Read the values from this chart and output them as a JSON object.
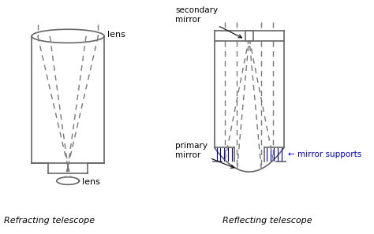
{
  "bg_color": "#ffffff",
  "line_color": "#666666",
  "dashed_color": "#777777",
  "blue_color": "#0000cc",
  "title1": "Refracting telescope",
  "title2": "Reflecting telescope",
  "label_lens_top": "lens",
  "label_lens_bottom": "lens",
  "label_secondary": "secondary\nmirror",
  "label_primary": "primary\nmirror",
  "label_supports": "← mirror supports"
}
